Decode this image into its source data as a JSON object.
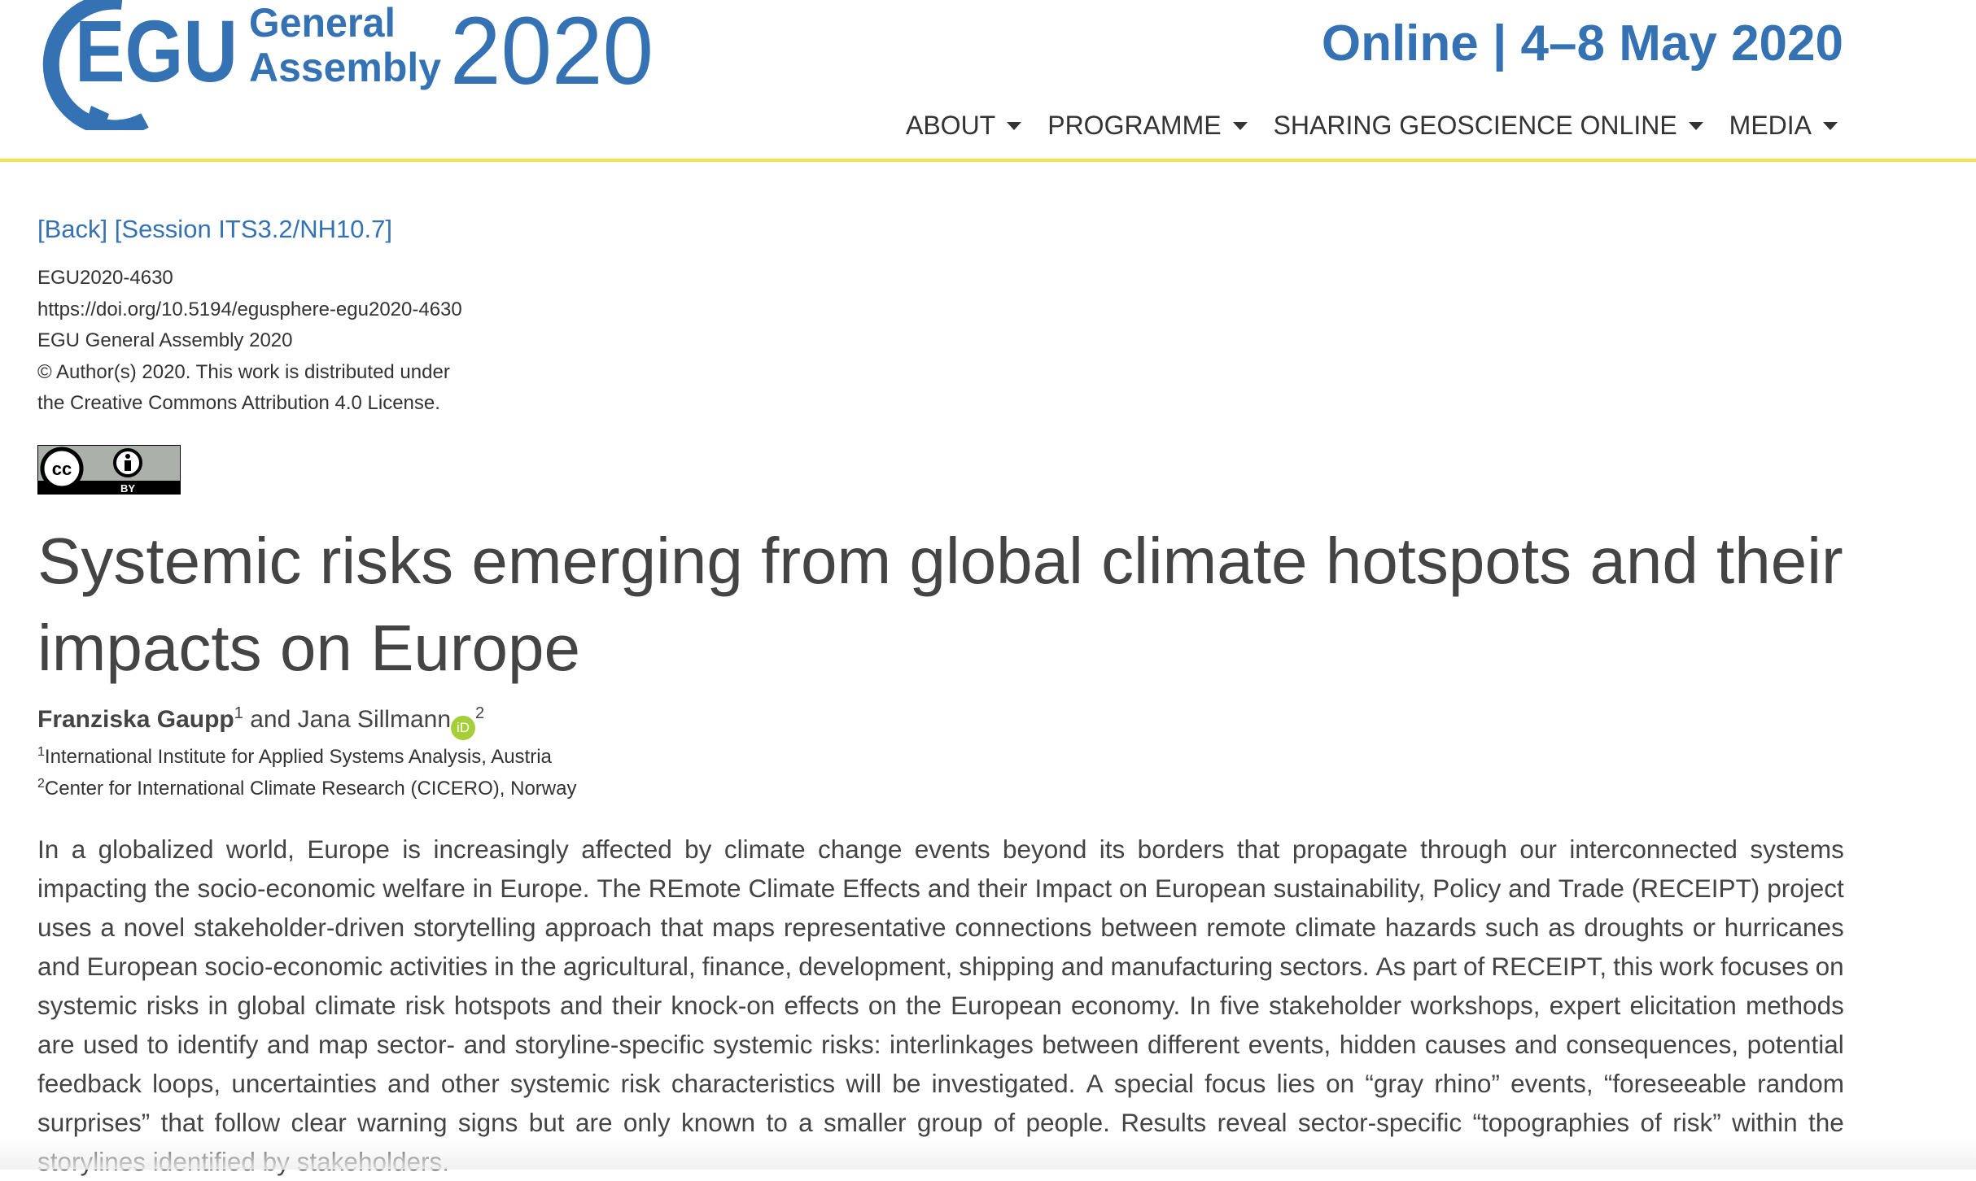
{
  "header": {
    "logo": {
      "egu": "EGU",
      "line1": "General",
      "line2": "Assembly",
      "year": "2020"
    },
    "dates": "Online | 4–8 May 2020",
    "nav": [
      {
        "label": "ABOUT"
      },
      {
        "label": "PROGRAMME"
      },
      {
        "label": "SHARING GEOSCIENCE ONLINE"
      },
      {
        "label": "MEDIA"
      }
    ]
  },
  "colors": {
    "brand": "#3572b4",
    "rule": "#fbe04c",
    "orcid": "#a6ce39"
  },
  "links": {
    "back": "[Back]",
    "session": "[Session ITS3.2/NH10.7]"
  },
  "meta": [
    "EGU2020-4630",
    "https://doi.org/10.5194/egusphere-egu2020-4630",
    "EGU General Assembly 2020",
    "© Author(s) 2020. This work is distributed under",
    "the Creative Commons Attribution 4.0 License."
  ],
  "license_badge": {
    "cc": "cc",
    "by": "BY"
  },
  "title": "Systemic risks emerging from global climate hotspots and their impacts on Europe",
  "authors": {
    "a1": "Franziska Gaupp",
    "a1_sup": "1",
    "and": " and Jana Sillmann",
    "orcid": "iD",
    "a2_sup": "2"
  },
  "affiliations": [
    {
      "sup": "1",
      "text": "International Institute for Applied Systems Analysis, Austria"
    },
    {
      "sup": "2",
      "text": "Center for International Climate Research (CICERO), Norway"
    }
  ],
  "abstract_lines": [
    "In a globalized world, Europe is increasingly affected by climate change events beyond its borders that propagate through our interconnected systems",
    "impacting the socio-economic welfare in Europe. The REmote Climate Effects and their Impact on European sustainability, Policy and Trade (RECEIPT) project",
    "uses a novel stakeholder-driven storytelling approach that maps representative connections between remote climate hazards such as droughts or hurricanes",
    "and European socio-economic activities in the agricultural, finance, development, shipping and manufacturing sectors. As part of RECEIPT, this work focuses on",
    "systemic risks in global climate risk hotspots and their knock-on effects on the European economy. In five stakeholder workshops, expert elicitation methods",
    "are used to identify and map sector- and storyline-specific systemic risks: interlinkages between different events, hidden causes and consequences, potential",
    "feedback loops, uncertainties and other systemic risk characteristics will be investigated. A special focus lies on “gray rhino” events, “foreseeable random",
    "surprises” that follow clear warning signs but are only known to a smaller group of people. Results reveal sector-specific “topographies of risk” within the",
    "storylines identified by stakeholders."
  ]
}
